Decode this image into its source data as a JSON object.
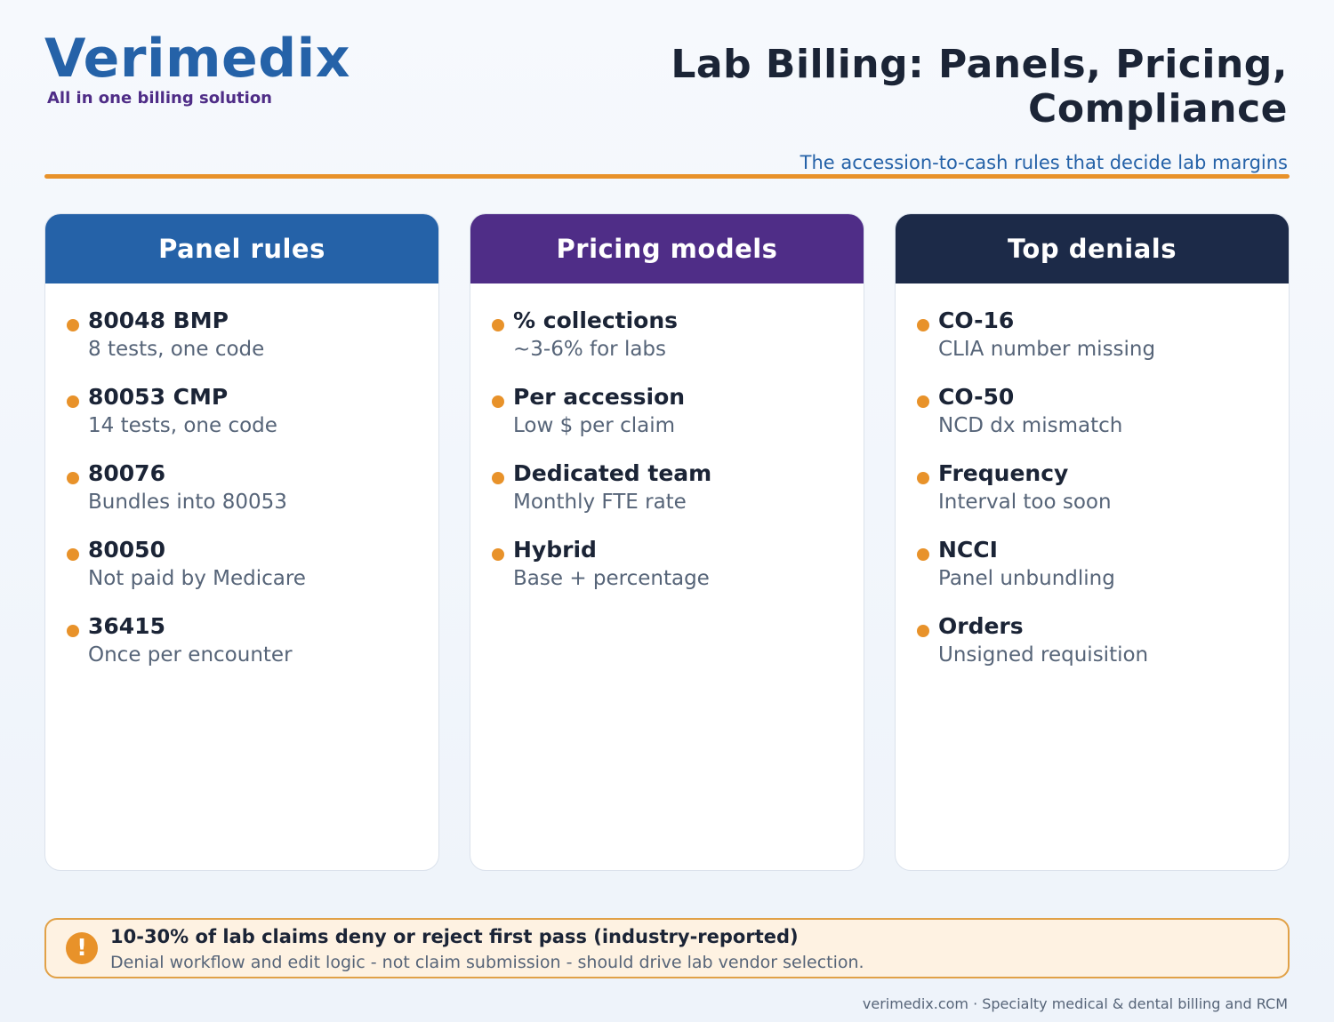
{
  "brand": {
    "name": "Verimedix",
    "tagline": "All in one billing solution"
  },
  "header": {
    "title_line1": "Lab Billing: Panels, Pricing,",
    "title_line2": "Compliance",
    "subtitle": "The accession-to-cash rules that decide lab margins"
  },
  "colors": {
    "blue": "#2562a8",
    "purple": "#4f2d87",
    "navy": "#1c2a48",
    "accent": "#e8922a"
  },
  "cards": [
    {
      "title": "Panel rules",
      "items": [
        {
          "title": "80048 BMP",
          "desc": "8 tests, one code"
        },
        {
          "title": "80053 CMP",
          "desc": "14 tests, one code"
        },
        {
          "title": "80076",
          "desc": "Bundles into 80053"
        },
        {
          "title": "80050",
          "desc": "Not paid by Medicare"
        },
        {
          "title": "36415",
          "desc": "Once per encounter"
        }
      ]
    },
    {
      "title": "Pricing models",
      "items": [
        {
          "title": "% collections",
          "desc": "~3-6% for labs"
        },
        {
          "title": "Per accession",
          "desc": "Low $ per claim"
        },
        {
          "title": "Dedicated team",
          "desc": "Monthly FTE rate"
        },
        {
          "title": "Hybrid",
          "desc": "Base + percentage"
        }
      ]
    },
    {
      "title": "Top denials",
      "items": [
        {
          "title": "CO-16",
          "desc": "CLIA number missing"
        },
        {
          "title": "CO-50",
          "desc": "NCD dx mismatch"
        },
        {
          "title": "Frequency",
          "desc": "Interval too soon"
        },
        {
          "title": "NCCI",
          "desc": "Panel unbundling"
        },
        {
          "title": "Orders",
          "desc": "Unsigned requisition"
        }
      ]
    }
  ],
  "callout": {
    "icon": "exclamation-icon",
    "title": "10-30% of lab claims deny or reject first pass (industry-reported)",
    "text": "Denial workflow and edit logic - not claim submission - should drive lab vendor selection."
  },
  "footer": {
    "text": "verimedix.com · Specialty medical & dental billing and RCM"
  }
}
